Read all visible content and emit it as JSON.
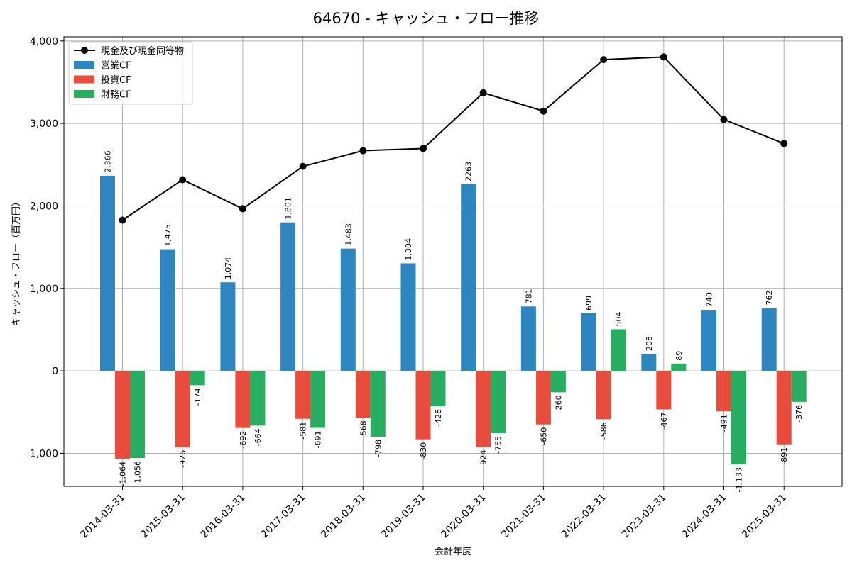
{
  "chart_data": {
    "type": "bar",
    "title": "64670 - キャッシュ・フロー推移",
    "xlabel": "会計年度",
    "ylabel": "キャッシュ・フロー（百万円）",
    "ylim": [
      -1400,
      4050
    ],
    "yticks": [
      -1000,
      0,
      1000,
      2000,
      3000,
      4000
    ],
    "ytick_labels": [
      "-1,000",
      "0",
      "1,000",
      "2,000",
      "3,000",
      "4,000"
    ],
    "grid": true,
    "legend_position": "top-left",
    "categories": [
      "2014-03-31",
      "2015-03-31",
      "2016-03-31",
      "2017-03-31",
      "2018-03-31",
      "2019-03-31",
      "2020-03-31",
      "2021-03-31",
      "2022-03-31",
      "2023-03-31",
      "2024-03-31",
      "2025-03-31"
    ],
    "series": [
      {
        "name": "営業CF",
        "type": "bar",
        "color": "#2e86c1",
        "values": [
          2366,
          1475,
          1074,
          1801,
          1483,
          1304,
          2263,
          781,
          699,
          208,
          740,
          762
        ],
        "labels": [
          "2,366",
          "1,475",
          "1,074",
          "1,801",
          "1,483",
          "1,304",
          "2263",
          "781",
          "699",
          "208",
          "740",
          "762"
        ]
      },
      {
        "name": "投資CF",
        "type": "bar",
        "color": "#e74c3c",
        "values": [
          -1064,
          -926,
          -692,
          -581,
          -568,
          -830,
          -924,
          -650,
          -586,
          -467,
          -491,
          -891
        ],
        "labels": [
          "-1,064",
          "-926",
          "-692",
          "-581",
          "-568",
          "-830",
          "-924",
          "-650",
          "-586",
          "-467",
          "-491",
          "-891"
        ]
      },
      {
        "name": "財務CF",
        "type": "bar",
        "color": "#27ae60",
        "values": [
          -1056,
          -174,
          -664,
          -691,
          -798,
          -428,
          -755,
          -260,
          504,
          89,
          -1133,
          -376
        ],
        "labels": [
          "-1,056",
          "-174",
          "-664",
          "-691",
          "-798",
          "-428",
          "-755",
          "-260",
          "504",
          "89",
          "-1,133",
          "-376"
        ]
      },
      {
        "name": "現金及び現金同等物",
        "type": "line",
        "color": "#000000",
        "values": [
          1828,
          2318,
          1966,
          2480,
          2670,
          2696,
          3372,
          3150,
          3774,
          3806,
          3048,
          2757
        ]
      }
    ],
    "legend": [
      "現金及び現金同等物",
      "営業CF",
      "投資CF",
      "財務CF"
    ]
  }
}
